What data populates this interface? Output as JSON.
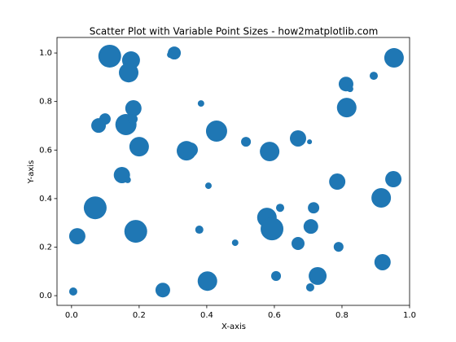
{
  "chart_data": {
    "type": "scatter",
    "title": "Scatter Plot with Variable Point Sizes - how2matplotlib.com",
    "x_label": "X-axis",
    "y_label": "Y-axis",
    "color": "#1f77b4",
    "xlim": [
      -0.043,
      1.0
    ],
    "ylim": [
      -0.04,
      1.064
    ],
    "xticks": [
      {
        "value": 0,
        "label": "0.0"
      },
      {
        "value": 0.2,
        "label": "0.2"
      },
      {
        "value": 0.4,
        "label": "0.4"
      },
      {
        "value": 0.6,
        "label": "0.6"
      },
      {
        "value": 0.8,
        "label": "0.8"
      },
      {
        "value": 1,
        "label": "1.0"
      }
    ],
    "yticks": [
      {
        "value": 0,
        "label": "0.0"
      },
      {
        "value": 0.2,
        "label": "0.2"
      },
      {
        "value": 0.4,
        "label": "0.4"
      },
      {
        "value": 0.6,
        "label": "0.6"
      },
      {
        "value": 0.8,
        "label": "0.8"
      },
      {
        "value": 1,
        "label": "1.0"
      }
    ],
    "x": [
      0.113,
      0.176,
      0.169,
      0.304,
      0.292,
      0.954,
      0.894,
      0.812,
      0.824,
      0.183,
      0.383,
      0.814,
      0.099,
      0.08,
      0.161,
      0.181,
      0.2,
      0.429,
      0.516,
      0.67,
      0.704,
      0.34,
      0.352,
      0.586,
      0.149,
      0.166,
      0.405,
      0.786,
      0.952,
      0.916,
      0.07,
      0.617,
      0.716,
      0.578,
      0.593,
      0.708,
      0.378,
      0.19,
      0.017,
      0.67,
      0.484,
      0.79,
      0.92,
      0.605,
      0.728,
      0.402,
      0.27,
      0.706,
      0.005
    ],
    "values": [
      0.987,
      0.97,
      0.919,
      1.0,
      0.993,
      0.98,
      0.906,
      0.872,
      0.852,
      0.772,
      0.792,
      0.775,
      0.728,
      0.701,
      0.705,
      0.728,
      0.614,
      0.678,
      0.634,
      0.648,
      0.634,
      0.597,
      0.601,
      0.594,
      0.497,
      0.477,
      0.453,
      0.47,
      0.48,
      0.403,
      0.362,
      0.362,
      0.362,
      0.322,
      0.275,
      0.285,
      0.272,
      0.265,
      0.245,
      0.215,
      0.218,
      0.201,
      0.138,
      0.081,
      0.081,
      0.06,
      0.023,
      0.034,
      0.017
    ],
    "sizes": [
      406,
      250,
      298,
      132,
      33,
      298,
      52,
      168,
      33,
      207,
      33,
      298,
      101,
      168,
      350,
      75,
      298,
      350,
      75,
      207,
      19,
      298,
      168,
      298,
      207,
      33,
      33,
      207,
      207,
      298,
      406,
      52,
      101,
      298,
      406,
      168,
      52,
      406,
      207,
      132,
      33,
      75,
      207,
      75,
      250,
      298,
      168,
      52,
      52
    ]
  }
}
